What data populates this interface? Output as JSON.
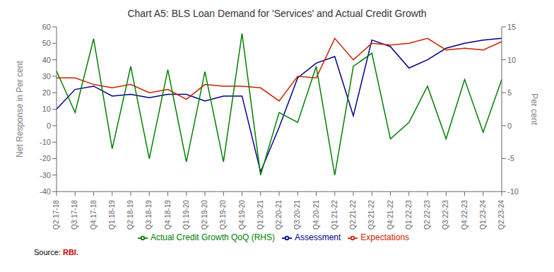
{
  "chart_data": {
    "type": "line",
    "title": "Chart A5: BLS Loan Demand for 'Services' and Actual Credit Growth",
    "ylabel": "Net Response in Per cent",
    "y2label": "Per cent",
    "categories": [
      "Q2:17-18",
      "Q3:17-18",
      "Q4:17-18",
      "Q1:18-19",
      "Q2:18-19",
      "Q3:18-19",
      "Q4:18-19",
      "Q1:19-20",
      "Q2:19-20",
      "Q3:19-20",
      "Q4:19-20",
      "Q1:20-21",
      "Q2:20-21",
      "Q3:20-21",
      "Q4:20-21",
      "Q1:21-22",
      "Q2:21-22",
      "Q3:21-22",
      "Q4:21-22",
      "Q1:22-23",
      "Q2:22-23",
      "Q3:22-23",
      "Q4:22-23",
      "Q1:23-24",
      "Q2:23-24"
    ],
    "series": [
      {
        "name": "Assessment",
        "color": "#00008B",
        "values": [
          10,
          22,
          24,
          18,
          19,
          17,
          19,
          19,
          15,
          18,
          18,
          -28,
          -1,
          29,
          38,
          42,
          6,
          52,
          48,
          35,
          40,
          47,
          50,
          52,
          53
        ]
      },
      {
        "name": "Expectations",
        "color": "#CC2200",
        "values": [
          29,
          29,
          25,
          23,
          25,
          20,
          22,
          16,
          25,
          24,
          24,
          23,
          15,
          30,
          29,
          53,
          40,
          50,
          49,
          50,
          53,
          46,
          47,
          46,
          51
        ]
      },
      {
        "name": "Actual Credit Growth QoQ (RHS)",
        "color": "#008000",
        "axis": "y2",
        "values": [
          8.3,
          2.0,
          13.2,
          -3.5,
          9.0,
          -5.0,
          8.5,
          -5.5,
          8.2,
          -5.5,
          14.0,
          -7.5,
          2.0,
          0.5,
          9.0,
          -7.5,
          9.0,
          11.0,
          -2.0,
          0.5,
          6.0,
          -2.0,
          7.0,
          -1.0,
          7.0
        ]
      }
    ],
    "ylim": [
      -40,
      60
    ],
    "yticks": [
      -40,
      -30,
      -20,
      -10,
      0,
      10,
      20,
      30,
      40,
      50,
      60
    ],
    "y2lim": [
      -10,
      15
    ],
    "y2ticks": [
      -10,
      -5,
      0,
      5,
      10,
      15
    ],
    "grid": false,
    "legend": "bottom",
    "annotations": [
      {
        "text": "Source: "
      },
      {
        "text": "RBI.",
        "color": "#CC0000"
      }
    ]
  }
}
